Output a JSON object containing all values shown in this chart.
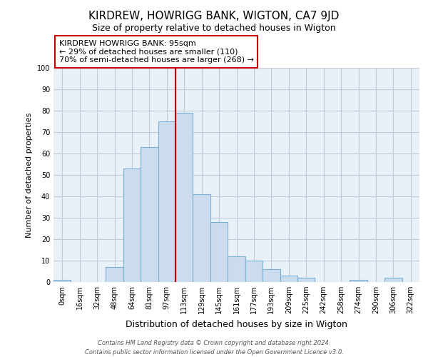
{
  "title": "KIRDREW, HOWRIGG BANK, WIGTON, CA7 9JD",
  "subtitle": "Size of property relative to detached houses in Wigton",
  "xlabel": "Distribution of detached houses by size in Wigton",
  "ylabel": "Number of detached properties",
  "bar_labels": [
    "0sqm",
    "16sqm",
    "32sqm",
    "48sqm",
    "64sqm",
    "81sqm",
    "97sqm",
    "113sqm",
    "129sqm",
    "145sqm",
    "161sqm",
    "177sqm",
    "193sqm",
    "209sqm",
    "225sqm",
    "242sqm",
    "258sqm",
    "274sqm",
    "290sqm",
    "306sqm",
    "322sqm"
  ],
  "bar_values": [
    1,
    0,
    0,
    7,
    53,
    63,
    75,
    79,
    41,
    28,
    12,
    10,
    6,
    3,
    2,
    0,
    0,
    1,
    0,
    2,
    0
  ],
  "bar_color": "#ccdcee",
  "bar_edge_color": "#7bafd4",
  "vline_x_index": 6,
  "vline_color": "#cc0000",
  "ylim": [
    0,
    100
  ],
  "yticks": [
    0,
    10,
    20,
    30,
    40,
    50,
    60,
    70,
    80,
    90,
    100
  ],
  "annotation_title": "KIRDREW HOWRIGG BANK: 95sqm",
  "annotation_line1": "← 29% of detached houses are smaller (110)",
  "annotation_line2": "70% of semi-detached houses are larger (268) →",
  "annotation_box_color": "white",
  "annotation_box_edge": "#cc0000",
  "footer_line1": "Contains HM Land Registry data © Crown copyright and database right 2024.",
  "footer_line2": "Contains public sector information licensed under the Open Government Licence v3.0.",
  "background_color": "#e8f0f8",
  "grid_color": "#c0ccd8",
  "title_fontsize": 11,
  "subtitle_fontsize": 9,
  "ylabel_fontsize": 8,
  "xlabel_fontsize": 9,
  "tick_fontsize": 7,
  "annotation_fontsize": 8,
  "footer_fontsize": 6
}
